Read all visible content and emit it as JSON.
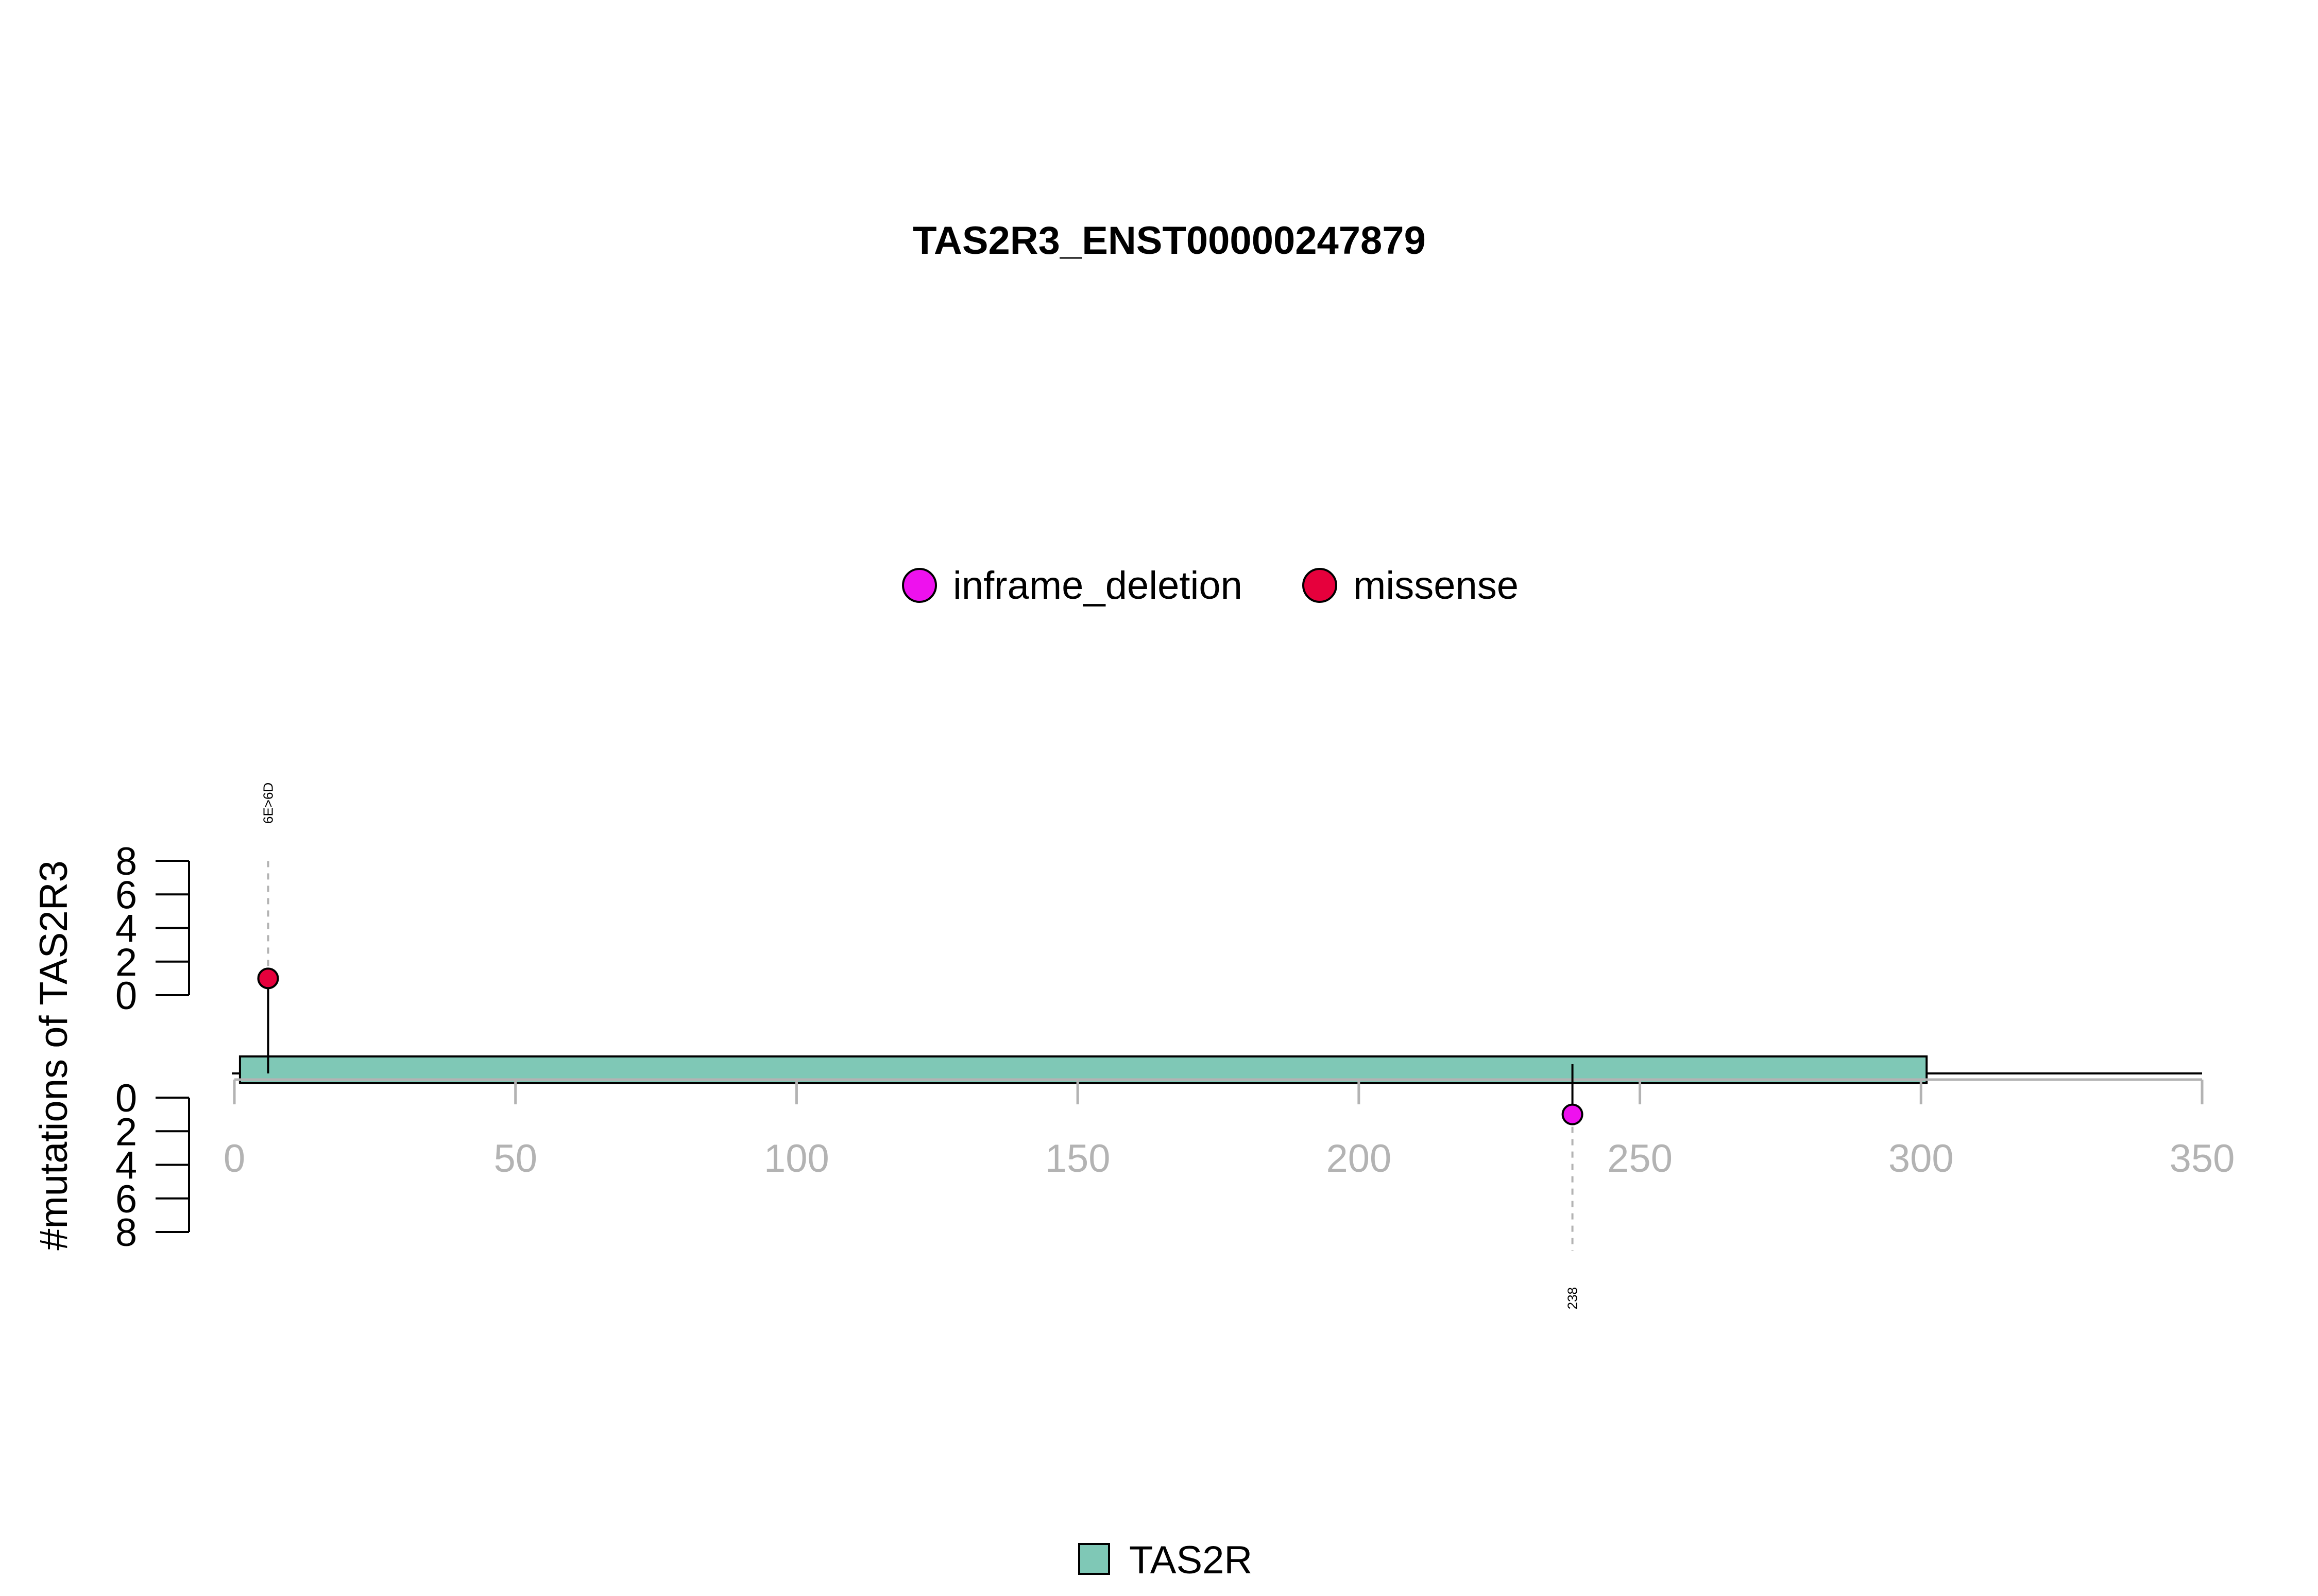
{
  "chart_data": {
    "type": "lollipop",
    "title": "TAS2R3_ENST00000247879",
    "ylabel": "#mutations of TAS2R3",
    "xlim": [
      0,
      350
    ],
    "x_ticks": [
      0,
      50,
      100,
      150,
      200,
      250,
      300,
      350
    ],
    "upper_y_ticks": [
      0,
      2,
      4,
      6,
      8
    ],
    "lower_y_ticks": [
      0,
      2,
      4,
      6,
      8
    ],
    "upper_ylim": [
      0,
      8
    ],
    "lower_ylim": [
      0,
      8
    ],
    "protein_length": 350,
    "mutation_legend": [
      {
        "label": "inframe_deletion",
        "color": "#ee11ee"
      },
      {
        "label": "missense",
        "color": "#e6003c"
      }
    ],
    "domain_legend": [
      {
        "label": "TAS2R",
        "color": "#7fc8b6"
      }
    ],
    "domains": [
      {
        "name": "TAS2R",
        "start": 1,
        "end": 301,
        "color": "#7fc8b6"
      }
    ],
    "mutations": [
      {
        "position": 6,
        "label": "6E>6D",
        "type": "missense",
        "count": 1,
        "track": "upper",
        "color": "#e6003c"
      },
      {
        "position": 238,
        "label": "238",
        "type": "inframe_deletion",
        "count": 1,
        "track": "lower",
        "color": "#ee11ee"
      }
    ]
  }
}
